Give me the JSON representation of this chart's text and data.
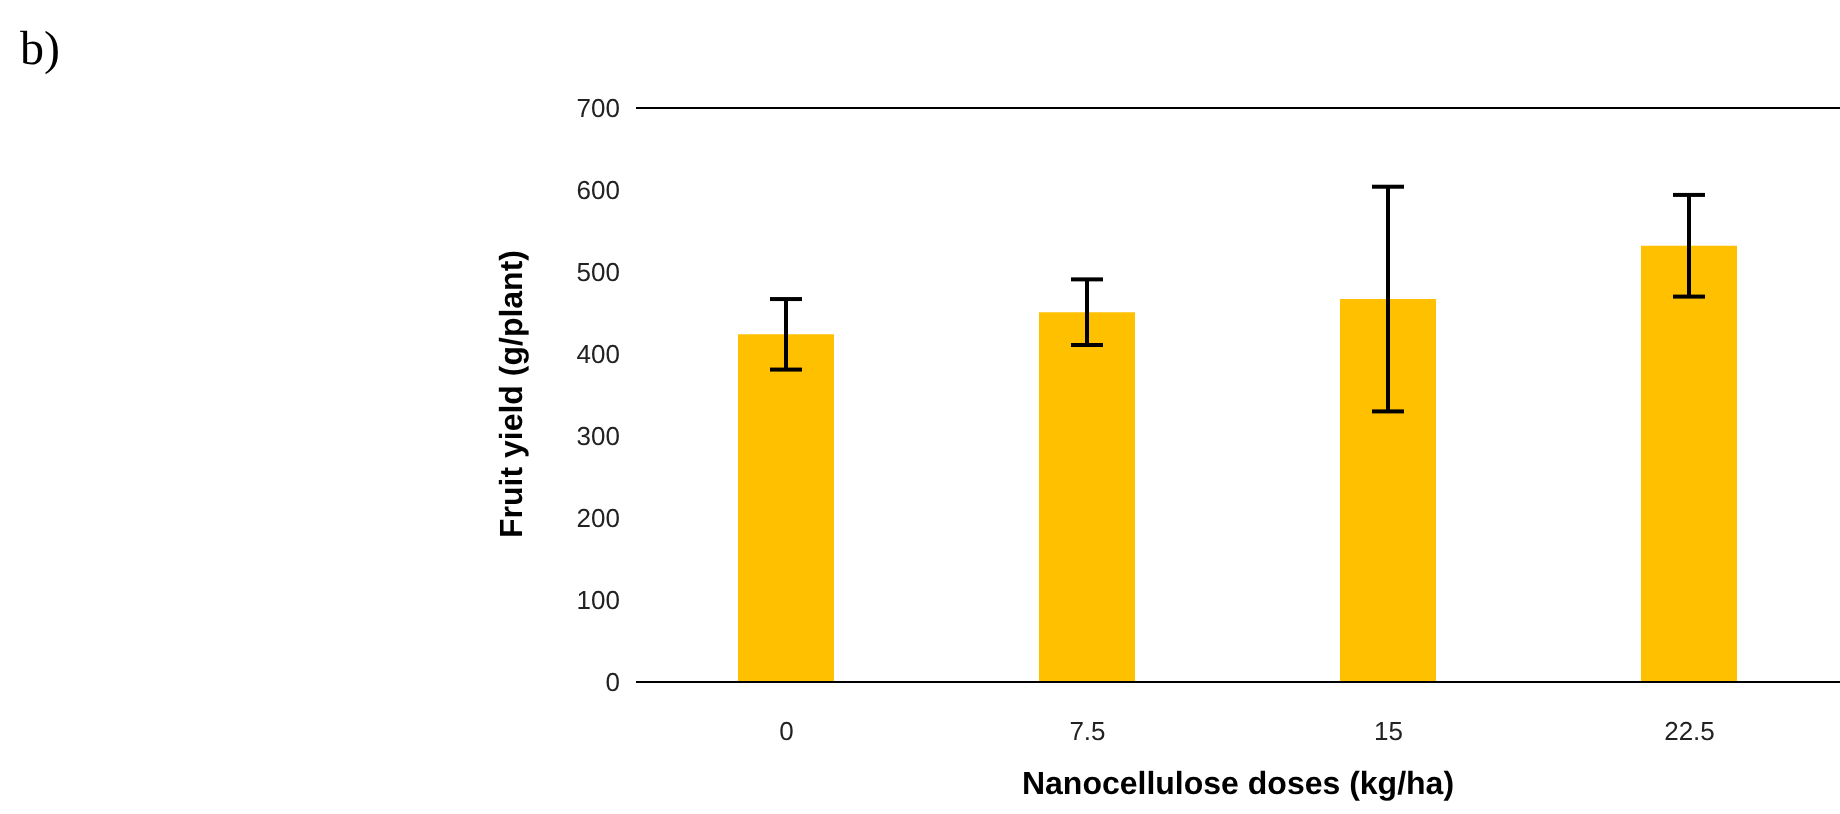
{
  "chart_data": {
    "type": "bar",
    "xlabel": "Nanocellulose doses (kg/ha)",
    "ylabel": "Fruit yield (g/plant)",
    "annotations": [
      "b)"
    ],
    "categories": [
      "0",
      "7.5",
      "15",
      "22.5"
    ],
    "values": [
      424,
      451,
      467,
      532
    ],
    "errors": [
      43,
      40,
      137,
      62
    ],
    "color": "#ffc000",
    "ylim": [
      0,
      700
    ],
    "yticks": [
      0,
      100,
      200,
      300,
      400,
      500,
      600,
      700
    ],
    "grid": false
  }
}
